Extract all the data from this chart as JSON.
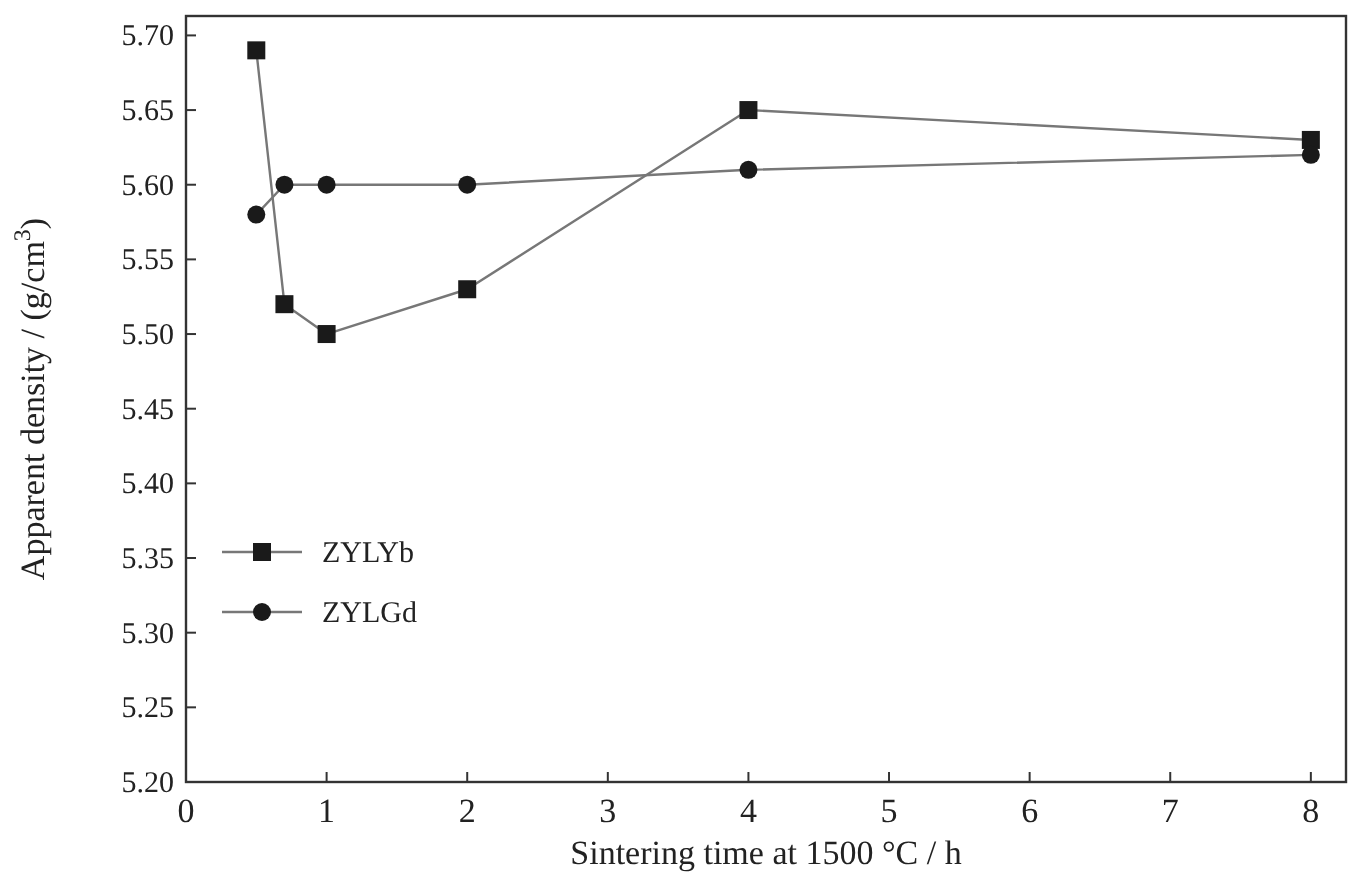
{
  "chart_data": {
    "type": "line",
    "xlabel": "Sintering time at 1500 °C / h",
    "ylabel": "Apparent density / (g/cm$^{3}$)",
    "x": [
      0.5,
      0.7,
      1,
      2,
      4,
      8
    ],
    "series": [
      {
        "name": "ZYLYb",
        "color": "#1a1a1a",
        "marker": "square",
        "values": [
          5.69,
          5.52,
          5.5,
          5.53,
          5.65,
          5.63
        ]
      },
      {
        "name": "ZYLGd",
        "color": "#1a1a1a",
        "marker": "circle",
        "values": [
          5.58,
          5.6,
          5.6,
          5.6,
          5.61,
          5.62
        ]
      }
    ],
    "xlim": [
      0,
      8.25
    ],
    "ylim": [
      5.2,
      5.713
    ],
    "xticks": [
      0,
      1,
      2,
      3,
      4,
      5,
      6,
      7,
      8
    ],
    "yticks": [
      {
        "value": 5.2,
        "label": "5.20"
      },
      {
        "value": 5.25,
        "label": "5.25"
      },
      {
        "value": 5.3,
        "label": "5.30"
      },
      {
        "value": 5.35,
        "label": "5.35"
      },
      {
        "value": 5.4,
        "label": "5.40"
      },
      {
        "value": 5.45,
        "label": "5.45"
      },
      {
        "value": 5.5,
        "label": "5.50"
      },
      {
        "value": 5.55,
        "label": "5.55"
      },
      {
        "value": 5.6,
        "label": "5.60"
      },
      {
        "value": 5.65,
        "label": "5.65"
      },
      {
        "value": 5.7,
        "label": "5.70"
      }
    ],
    "legend": "bottom left",
    "grid": false,
    "line_style": "solid"
  }
}
